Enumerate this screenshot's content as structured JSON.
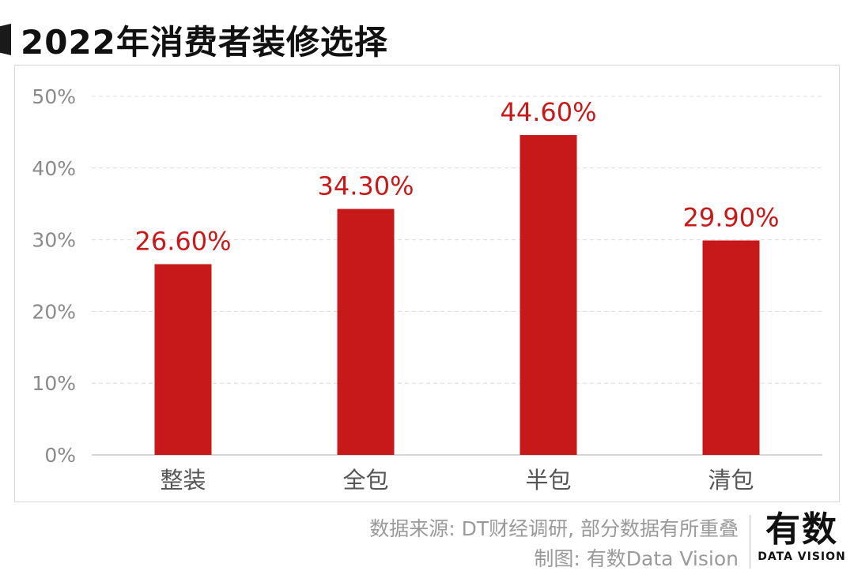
{
  "title": "2022年消费者装修选择",
  "footer": {
    "source": "数据来源: DT财经调研, 部分数据有所重叠",
    "credit": "制图: 有数Data Vision"
  },
  "logo": {
    "main": "有数",
    "sub": "DATA VISION"
  },
  "colors": {
    "bar": "#c8191a",
    "label": "#c8191a",
    "axis_text": "#8a8a8a",
    "category_text": "#555555",
    "grid": "#dcdcdc"
  },
  "chart_data": {
    "type": "bar",
    "categories": [
      "整装",
      "全包",
      "半包",
      "清包"
    ],
    "values": [
      26.6,
      34.3,
      44.6,
      29.9
    ],
    "value_labels": [
      "26.60%",
      "34.30%",
      "44.60%",
      "29.90%"
    ],
    "y_ticks": [
      0,
      10,
      20,
      30,
      40,
      50
    ],
    "y_tick_labels": [
      "0%",
      "10%",
      "20%",
      "30%",
      "40%",
      "50%"
    ],
    "ylim": [
      0,
      50
    ],
    "grid": true,
    "title": "2022年消费者装修选择"
  }
}
